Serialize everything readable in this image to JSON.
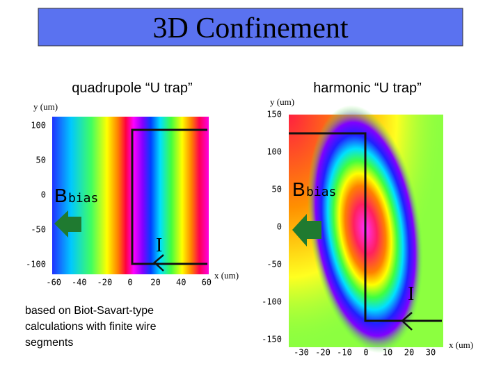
{
  "title": "3D Confinement",
  "left_panel": {
    "subtitle": "quadrupole “U trap”",
    "y_axis_label": "y (um)",
    "x_axis_label": "x (um)",
    "xticks": [
      -60,
      -40,
      -20,
      0,
      20,
      40,
      60
    ],
    "yticks": [
      100,
      50,
      0,
      -50,
      -100
    ],
    "field_label": "B",
    "field_subscript": "bias",
    "current_label": "I"
  },
  "right_panel": {
    "subtitle": "harmonic “U trap”",
    "y_axis_label": "y (um)",
    "x_axis_label": "x (um)",
    "xticks": [
      -30,
      -20,
      -10,
      0,
      10,
      20,
      30
    ],
    "yticks": [
      150,
      100,
      50,
      0,
      -50,
      -100,
      -150
    ],
    "field_label": "B",
    "field_subscript": "bias",
    "current_label": "I"
  },
  "caption": [
    "based on Biot-Savart-type",
    "calculations with finite wire",
    "segments"
  ]
}
